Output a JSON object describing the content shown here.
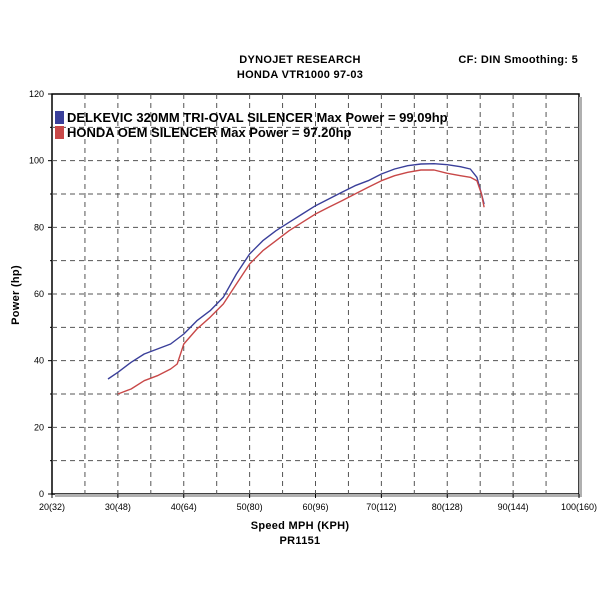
{
  "header": {
    "title_line1": "DYNOJET RESEARCH",
    "title_line2": "HONDA VTR1000 97-03",
    "settings": "CF: DIN  Smoothing: 5"
  },
  "footer": {
    "run_id": "PR1151"
  },
  "chart_data": {
    "type": "line",
    "xlabel": "Speed MPH (KPH)",
    "ylabel": "Power (hp)",
    "xlim": [
      20,
      100
    ],
    "ylim": [
      0,
      120
    ],
    "x_ticks": [
      {
        "value": 20,
        "label": "20(32)"
      },
      {
        "value": 30,
        "label": "30(48)"
      },
      {
        "value": 40,
        "label": "40(64)"
      },
      {
        "value": 50,
        "label": "50(80)"
      },
      {
        "value": 60,
        "label": "60(96)"
      },
      {
        "value": 70,
        "label": "70(112)"
      },
      {
        "value": 80,
        "label": "80(128)"
      },
      {
        "value": 90,
        "label": "90(144)"
      },
      {
        "value": 100,
        "label": "100(160)"
      }
    ],
    "y_ticks": [
      0,
      20,
      40,
      60,
      80,
      100,
      120
    ],
    "grid": true,
    "legend_position": "top-left",
    "series": [
      {
        "name": "DELKEVIC 320MM TRI-OVAL SILENCER  Max Power = 99.09hp",
        "color": "#3a3f9a",
        "x": [
          28.5,
          30,
          32,
          34,
          36,
          38,
          40,
          42,
          44,
          46,
          48,
          50,
          52,
          54,
          56,
          58,
          60,
          62,
          64,
          66,
          68,
          70,
          72,
          74,
          76,
          78,
          80,
          82,
          83.5,
          84.5,
          85.2,
          85.6
        ],
        "y": [
          34.5,
          36.5,
          39.5,
          42,
          43.5,
          45,
          48,
          52,
          55,
          59,
          66,
          72,
          76,
          79,
          81.5,
          84,
          86.5,
          88.5,
          90.5,
          92.5,
          94,
          96,
          97.5,
          98.5,
          99,
          99.09,
          98.8,
          98.2,
          97.5,
          95,
          90,
          87
        ]
      },
      {
        "name": "HONDA OEM SILENCER Max Power = 97.20hp",
        "color": "#c84848",
        "x": [
          30,
          32,
          34,
          36,
          38,
          39,
          40,
          42,
          44,
          46,
          48,
          50,
          52,
          54,
          56,
          58,
          60,
          62,
          64,
          66,
          68,
          70,
          72,
          74,
          76,
          78,
          80,
          82,
          83.5,
          84.5,
          85.2,
          85.6
        ],
        "y": [
          30,
          31.5,
          34,
          35.5,
          37.5,
          39,
          45,
          49.5,
          53,
          57,
          63,
          69,
          73,
          76,
          79,
          81.5,
          84,
          86,
          88,
          90,
          92,
          94,
          95.5,
          96.5,
          97.2,
          97.2,
          96.2,
          95.5,
          95,
          94,
          90,
          86
        ]
      }
    ]
  }
}
